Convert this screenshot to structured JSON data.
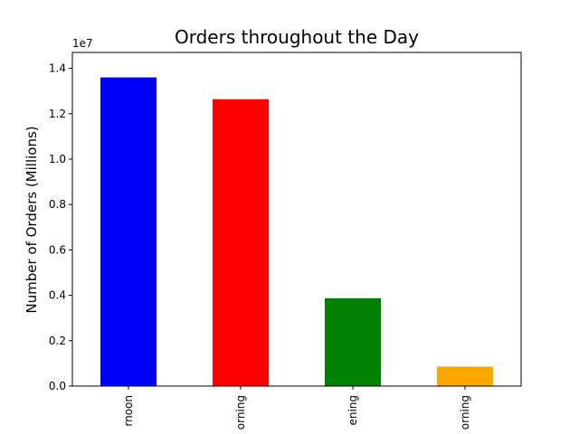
{
  "chart_data": {
    "type": "bar",
    "title": "Orders throughout the Day",
    "xlabel": "",
    "ylabel": "Number of Orders (Millions)",
    "y_offset_label": "1e7",
    "y_scale_exponent": 7,
    "categories": [
      "Afternoon",
      "Morning",
      "Evening",
      "Early Morning"
    ],
    "visible_tick_labels": [
      "rnoon",
      "orning",
      "ening",
      "orning"
    ],
    "values": [
      13600000,
      12640000,
      3870000,
      860000
    ],
    "colors": [
      "#0000ff",
      "#ff0000",
      "#008000",
      "#ffa500"
    ],
    "ylim": [
      0,
      14700000
    ],
    "yticks": [
      0,
      2000000,
      4000000,
      6000000,
      8000000,
      10000000,
      12000000,
      14000000
    ],
    "ytick_labels": [
      "0.0",
      "0.2",
      "0.4",
      "0.6",
      "0.8",
      "1.0",
      "1.2",
      "1.4"
    ],
    "grid": false,
    "legend": "none"
  }
}
